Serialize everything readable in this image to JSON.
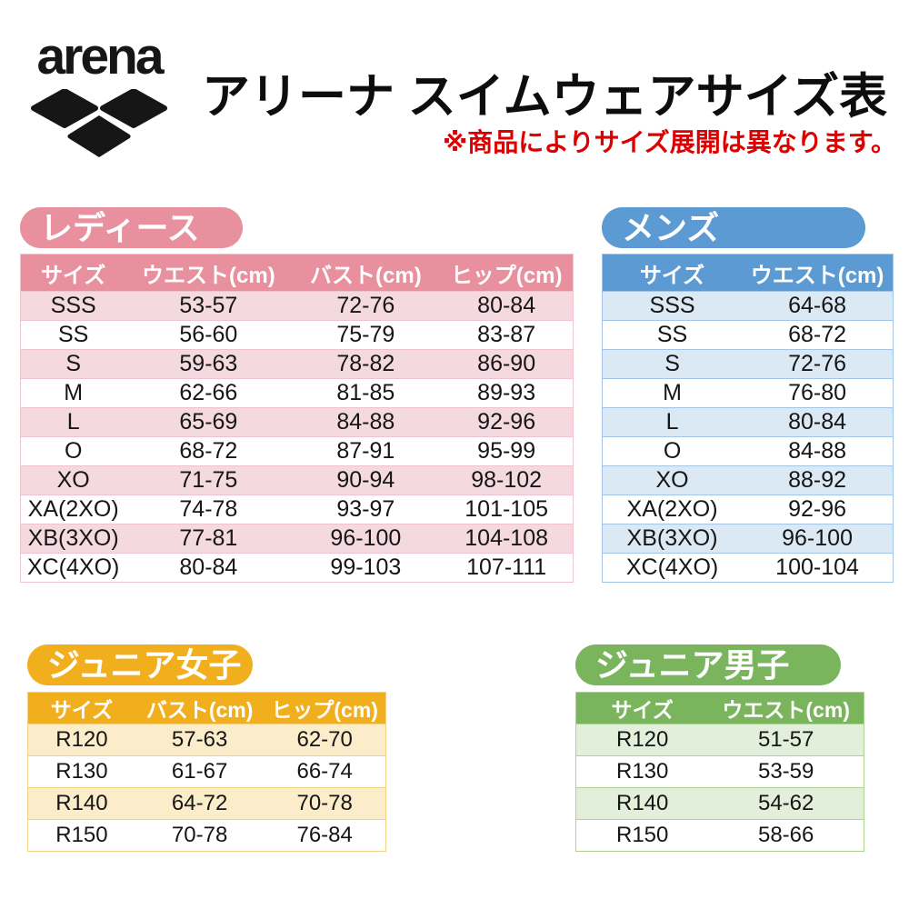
{
  "header": {
    "logo_text": "arena",
    "title": "アリーナ スイムウェアサイズ表",
    "note": "※商品によりサイズ展開は異なります。",
    "note_color": "#dd0000",
    "logo_color": "#161616"
  },
  "sections": [
    {
      "id": "ladies",
      "title": "レディース",
      "colors": {
        "main": "#E8909E",
        "light": "#F4D9E0",
        "border": "#EEC3CC"
      },
      "columns": [
        "サイズ",
        "ウエスト(cm)",
        "バスト(cm)",
        "ヒップ(cm)"
      ],
      "rows": [
        [
          "SSS",
          "53-57",
          "72-76",
          "80-84"
        ],
        [
          "SS",
          "56-60",
          "75-79",
          "83-87"
        ],
        [
          "S",
          "59-63",
          "78-82",
          "86-90"
        ],
        [
          "M",
          "62-66",
          "81-85",
          "89-93"
        ],
        [
          "L",
          "65-69",
          "84-88",
          "92-96"
        ],
        [
          "O",
          "68-72",
          "87-91",
          "95-99"
        ],
        [
          "XO",
          "71-75",
          "90-94",
          "98-102"
        ],
        [
          "XA(2XO)",
          "74-78",
          "93-97",
          "101-105"
        ],
        [
          "XB(3XO)",
          "77-81",
          "96-100",
          "104-108"
        ],
        [
          "XC(4XO)",
          "80-84",
          "99-103",
          "107-111"
        ]
      ]
    },
    {
      "id": "mens",
      "title": "メンズ",
      "colors": {
        "main": "#5B9AD3",
        "light": "#DBE9F5",
        "border": "#A3C6E6"
      },
      "columns": [
        "サイズ",
        "ウエスト(cm)"
      ],
      "rows": [
        [
          "SSS",
          "64-68"
        ],
        [
          "SS",
          "68-72"
        ],
        [
          "S",
          "72-76"
        ],
        [
          "M",
          "76-80"
        ],
        [
          "L",
          "80-84"
        ],
        [
          "O",
          "84-88"
        ],
        [
          "XO",
          "88-92"
        ],
        [
          "XA(2XO)",
          "92-96"
        ],
        [
          "XB(3XO)",
          "96-100"
        ],
        [
          "XC(4XO)",
          "100-104"
        ]
      ]
    },
    {
      "id": "jr-girls",
      "title": "ジュニア女子",
      "colors": {
        "main": "#F2AF1D",
        "light": "#FCEDCA",
        "border": "#F3D383"
      },
      "columns": [
        "サイズ",
        "バスト(cm)",
        "ヒップ(cm)"
      ],
      "rows": [
        [
          "R120",
          "57-63",
          "62-70"
        ],
        [
          "R130",
          "61-67",
          "66-74"
        ],
        [
          "R140",
          "64-72",
          "70-78"
        ],
        [
          "R150",
          "70-78",
          "76-84"
        ]
      ]
    },
    {
      "id": "jr-boys",
      "title": "ジュニア男子",
      "colors": {
        "main": "#7AB55E",
        "light": "#E2EFDA",
        "border": "#A9D293"
      },
      "columns": [
        "サイズ",
        "ウエスト(cm)"
      ],
      "rows": [
        [
          "R120",
          "51-57"
        ],
        [
          "R130",
          "53-59"
        ],
        [
          "R140",
          "54-62"
        ],
        [
          "R150",
          "58-66"
        ]
      ]
    }
  ]
}
